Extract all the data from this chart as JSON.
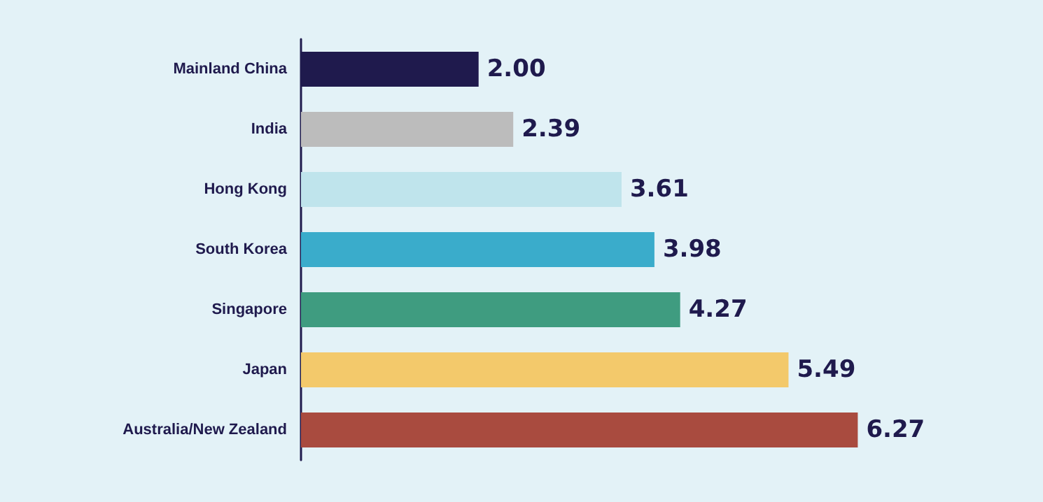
{
  "chart_data": {
    "type": "bar",
    "orientation": "horizontal",
    "categories": [
      "Mainland China",
      "India",
      "Hong Kong",
      "South Korea",
      "Singapore",
      "Japan",
      "Australia/New Zealand"
    ],
    "values": [
      2.0,
      2.39,
      3.61,
      3.98,
      4.27,
      5.49,
      6.27
    ],
    "colors": [
      "#1f1a4d",
      "#bcbcbc",
      "#bfe4ec",
      "#3aaccb",
      "#3f9c80",
      "#f3c96b",
      "#a94b3f"
    ],
    "value_labels": [
      "2.00",
      "2.39",
      "3.61",
      "3.98",
      "4.27",
      "5.49",
      "6.27"
    ]
  }
}
